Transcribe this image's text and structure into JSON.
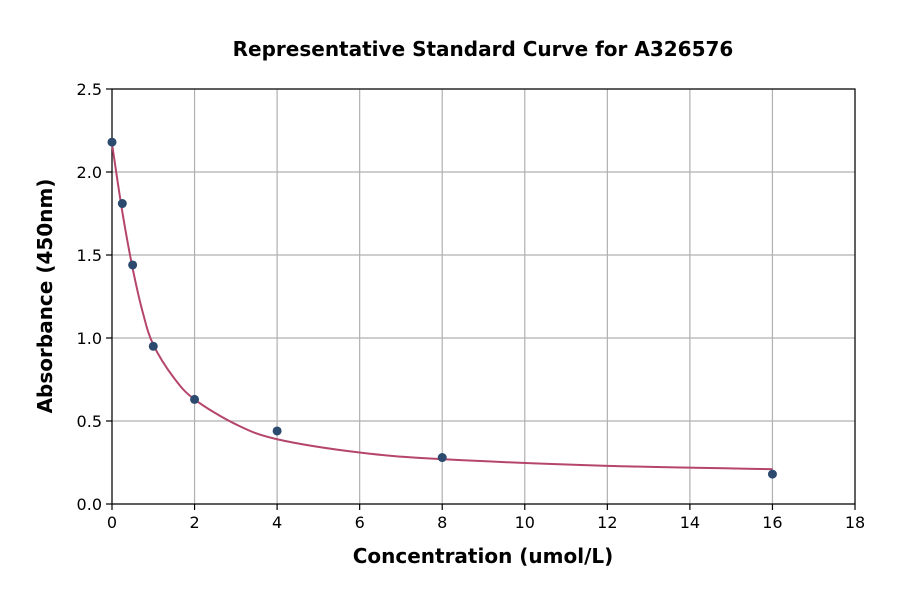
{
  "chart_data": {
    "type": "scatter",
    "title": "Representative Standard Curve for A326576",
    "xlabel": "Concentration (umol/L)",
    "ylabel": "Absorbance (450nm)",
    "xlim": [
      0,
      18
    ],
    "ylim": [
      0,
      2.5
    ],
    "x_ticks": [
      0,
      2,
      4,
      6,
      8,
      10,
      12,
      14,
      16,
      18
    ],
    "y_ticks": [
      0.0,
      0.5,
      1.0,
      1.5,
      2.0,
      2.5
    ],
    "x_tick_labels": [
      "0",
      "2",
      "4",
      "6",
      "8",
      "10",
      "12",
      "14",
      "16",
      "18"
    ],
    "y_tick_labels": [
      "0.0",
      "0.5",
      "1.0",
      "1.5",
      "2.0",
      "2.5"
    ],
    "grid": true,
    "series": [
      {
        "kind": "points",
        "x": [
          0,
          0.25,
          0.5,
          1,
          2,
          4,
          8,
          16
        ],
        "y": [
          2.18,
          1.81,
          1.44,
          0.95,
          0.63,
          0.44,
          0.28,
          0.18
        ]
      },
      {
        "kind": "fit-curve",
        "x": [
          0,
          0.25,
          0.5,
          0.75,
          1,
          1.5,
          2,
          3,
          4,
          6,
          8,
          12,
          16
        ],
        "y": [
          2.17,
          1.76,
          1.42,
          1.15,
          0.96,
          0.76,
          0.63,
          0.48,
          0.39,
          0.31,
          0.27,
          0.23,
          0.21
        ]
      }
    ],
    "colors": {
      "points": "#2c4a6e",
      "curve": "#b5456b"
    }
  }
}
